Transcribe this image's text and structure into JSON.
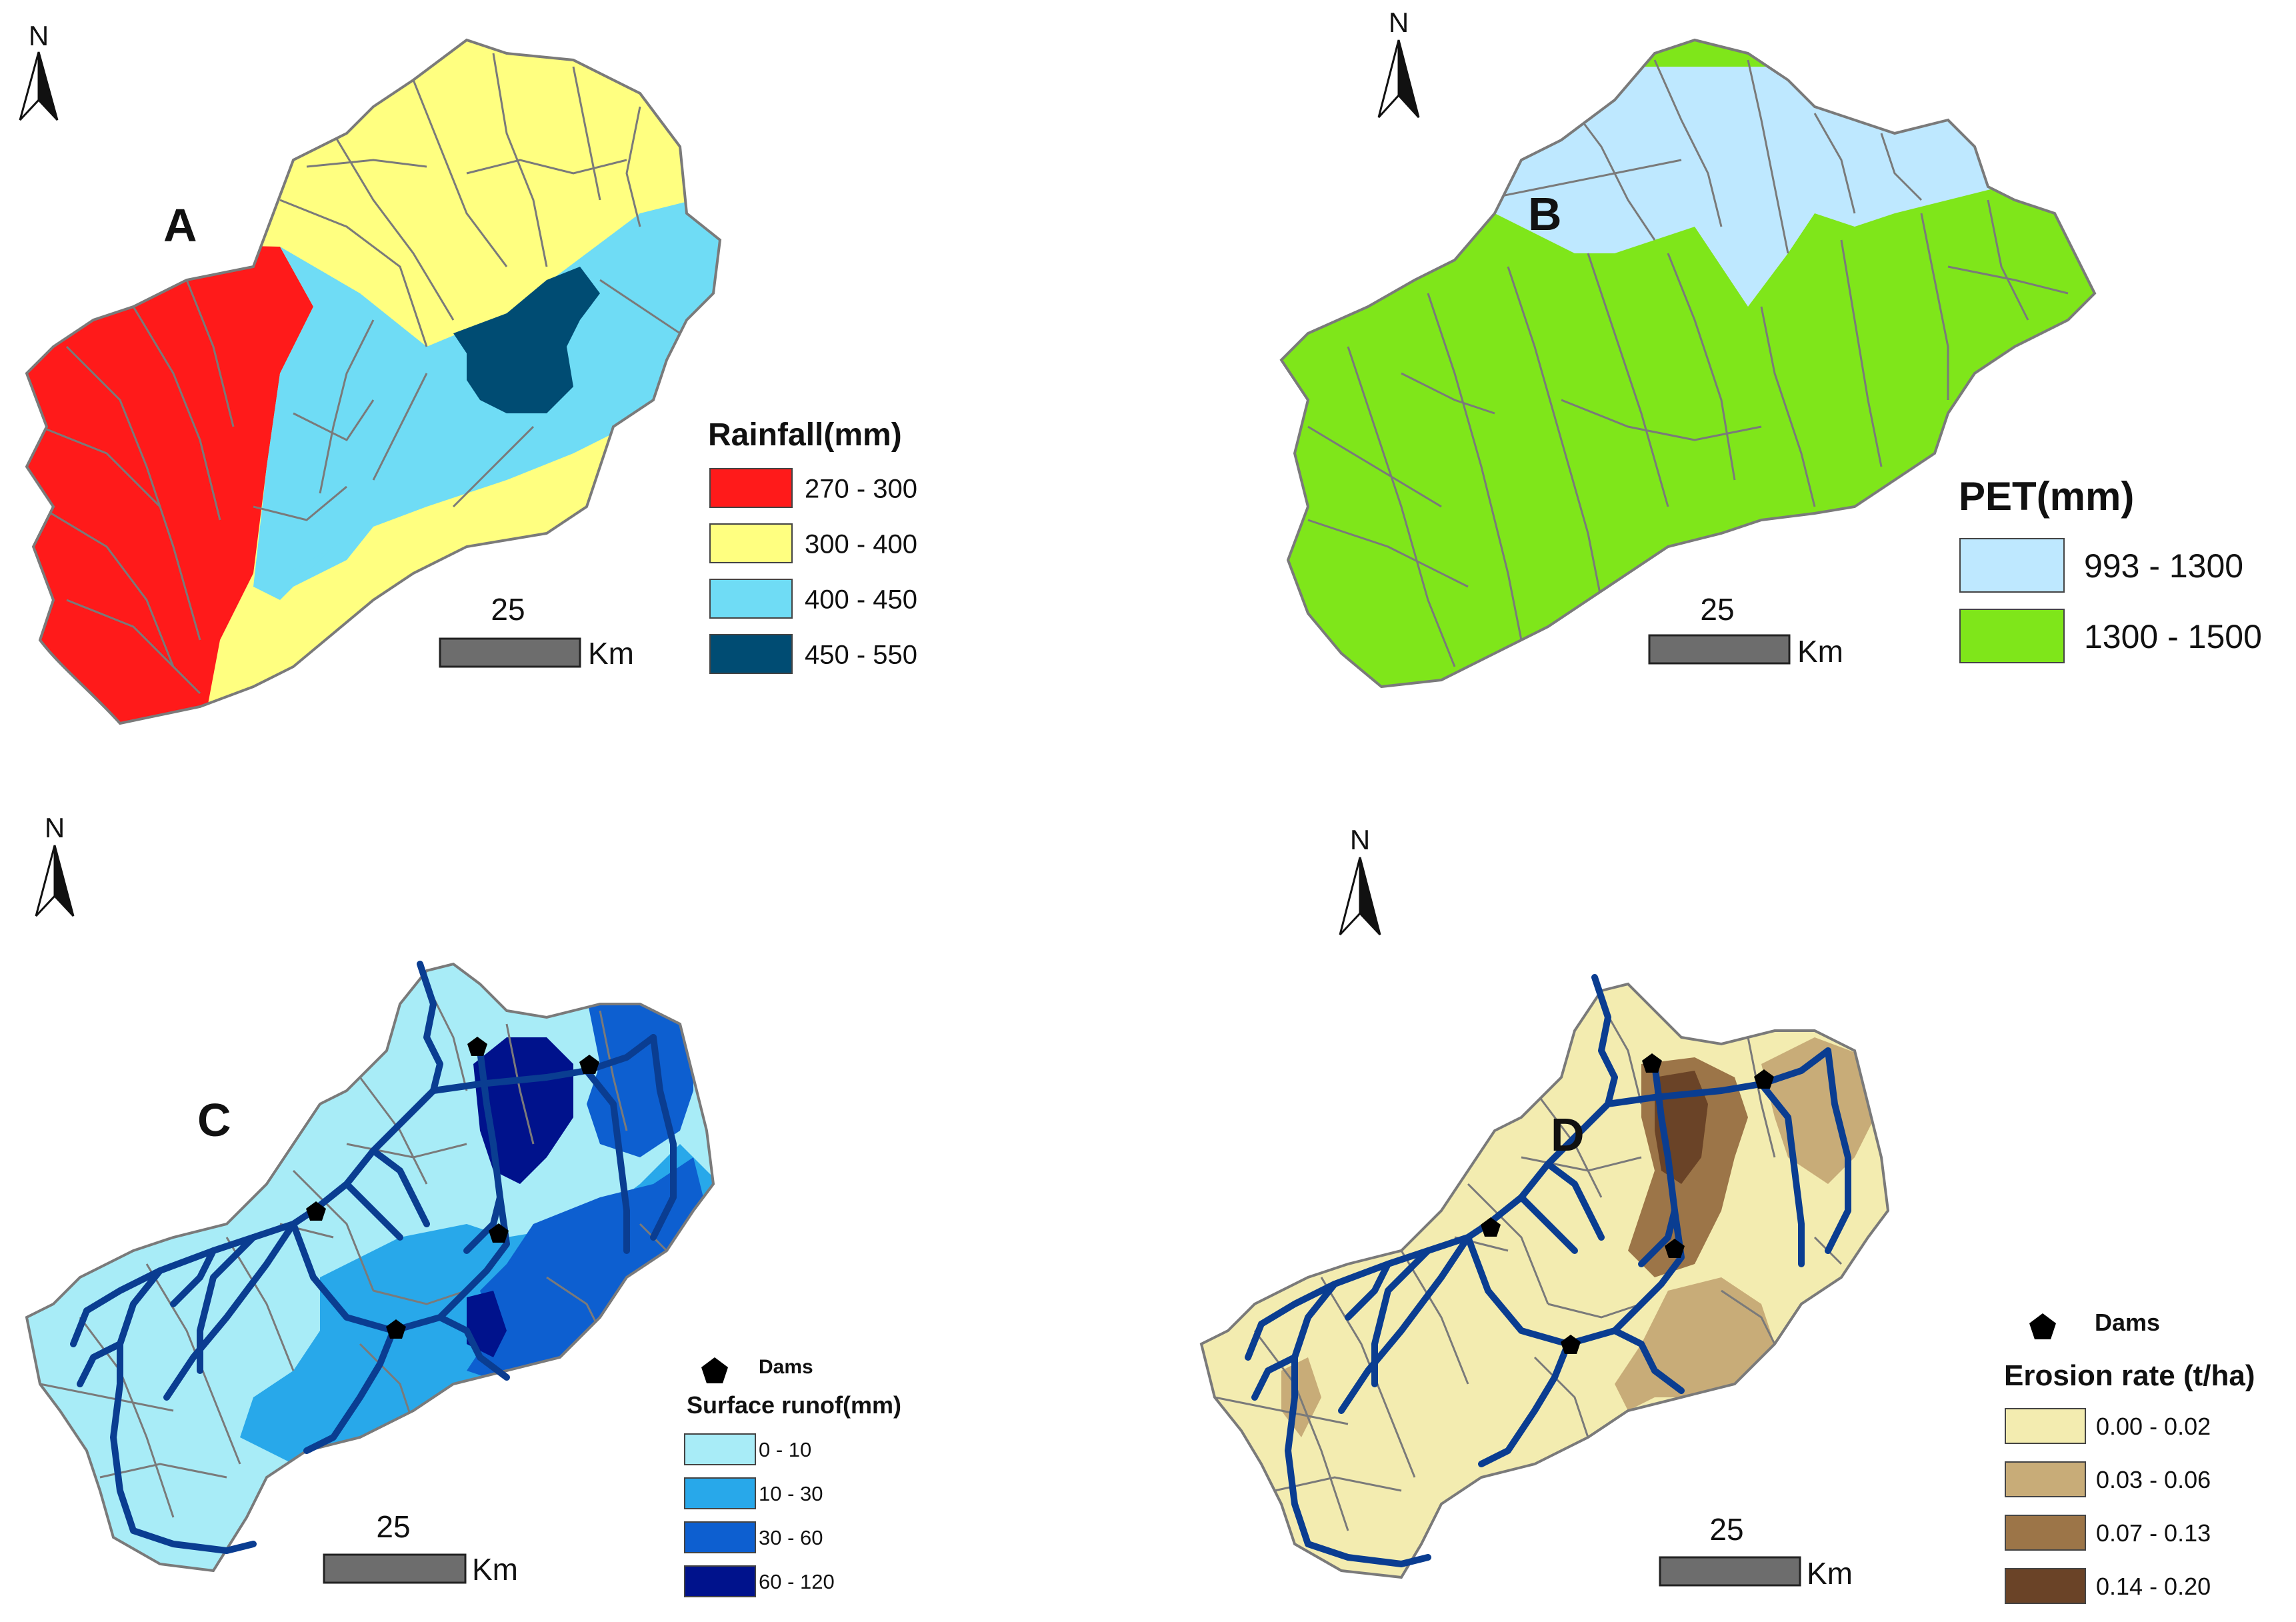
{
  "panels": [
    {
      "id": "A",
      "letter": "A",
      "north": "N",
      "scale_value": "25",
      "scale_unit": "Km",
      "legend_title": "Rainfall(mm)",
      "legend_items": [
        {
          "label": "270 - 300",
          "color": "#ff1a1a"
        },
        {
          "label": "300 - 400",
          "color": "#ffff80"
        },
        {
          "label": "400 - 450",
          "color": "#6fdcf5"
        },
        {
          "label": "450 - 550",
          "color": "#004c73"
        }
      ]
    },
    {
      "id": "B",
      "letter": "B",
      "north": "N",
      "scale_value": "25",
      "scale_unit": "Km",
      "legend_title": "PET(mm)",
      "legend_items": [
        {
          "label": "993 - 1300",
          "color": "#bee8ff"
        },
        {
          "label": "1300 - 1500",
          "color": "#7fe61a"
        }
      ]
    },
    {
      "id": "C",
      "letter": "C",
      "north": "N",
      "scale_value": "25",
      "scale_unit": "Km",
      "dams_label": "Dams",
      "legend_title": "Surface runof(mm)",
      "legend_items": [
        {
          "label": "0 - 10",
          "color": "#a8ecf7"
        },
        {
          "label": "10 - 30",
          "color": "#28a8ea"
        },
        {
          "label": "30 - 60",
          "color": "#0d5fd0"
        },
        {
          "label": "60 - 120",
          "color": "#00128c"
        }
      ]
    },
    {
      "id": "D",
      "letter": "D",
      "north": "N",
      "scale_value": "25",
      "scale_unit": "Km",
      "dams_label": "Dams",
      "legend_title": "Erosion rate (t/ha)",
      "legend_items": [
        {
          "label": "0.00 - 0.02",
          "color": "#f3ecb0"
        },
        {
          "label": "0.03 - 0.06",
          "color": "#c8ac78"
        },
        {
          "label": "0.07 - 0.13",
          "color": "#9c7548"
        },
        {
          "label": "0.14 - 0.20",
          "color": "#6a4327"
        }
      ]
    }
  ],
  "colors": {
    "boundary": "#7a7a7a",
    "river": "#0a3d91",
    "dam": "#000000",
    "scale_bar": "#6d6d6d"
  }
}
